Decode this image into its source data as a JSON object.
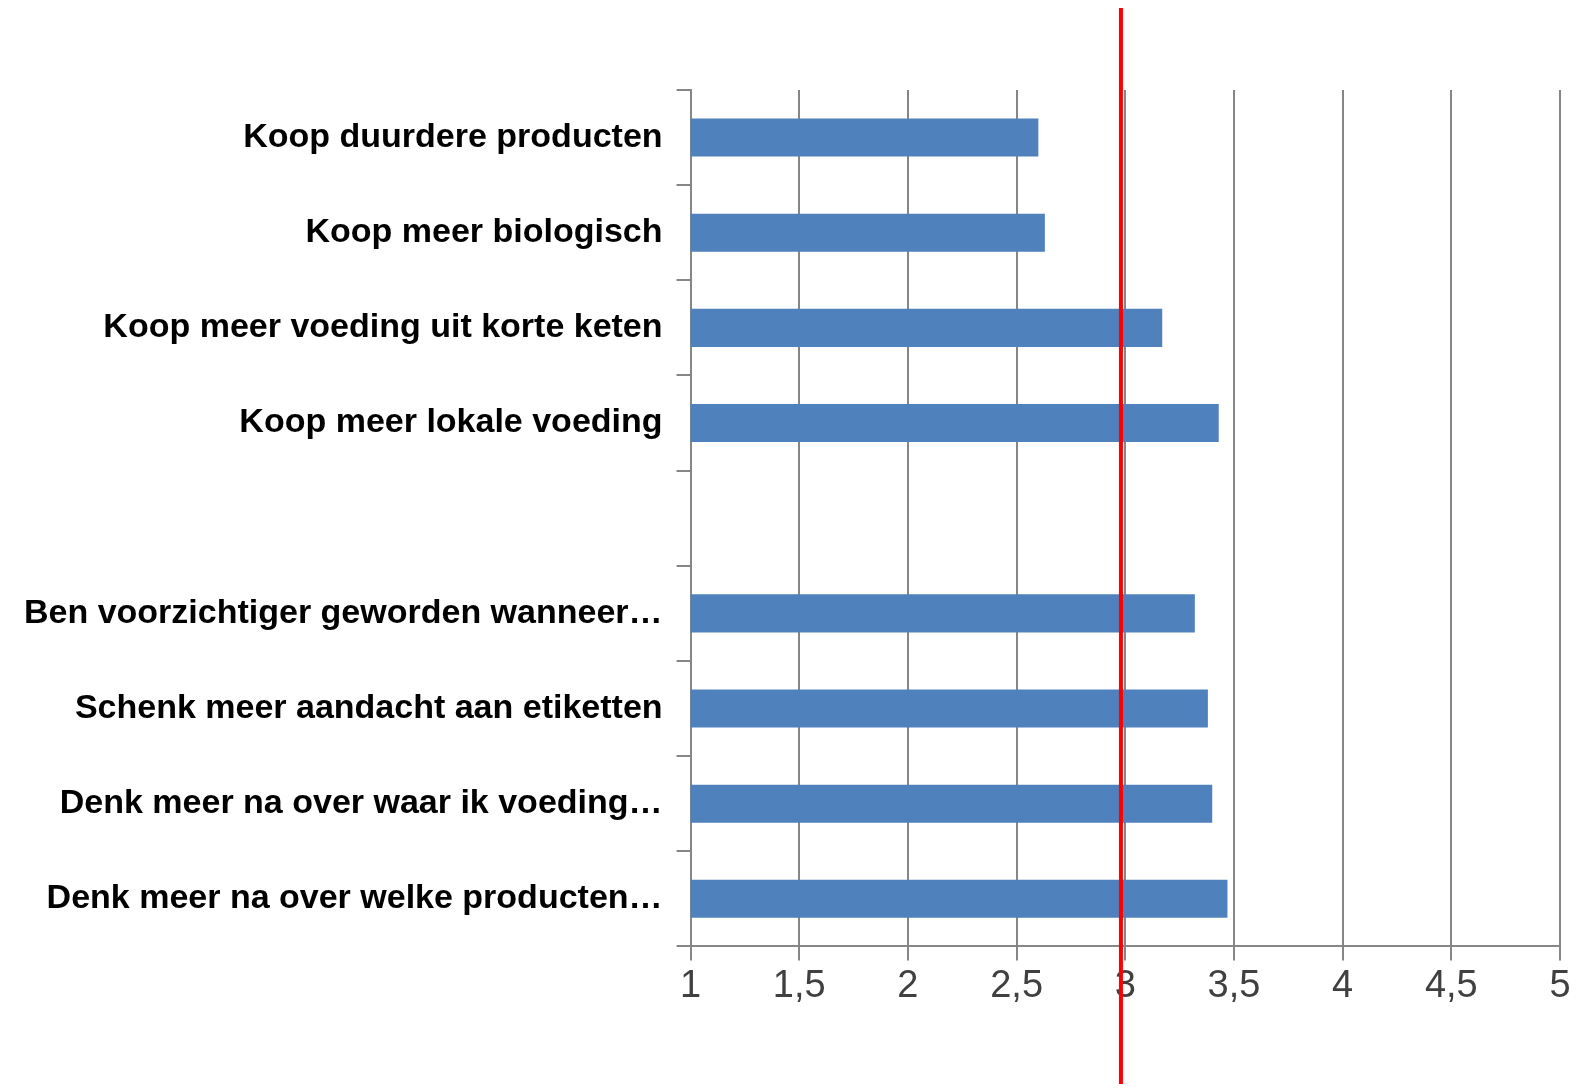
{
  "chart_data": {
    "type": "bar",
    "orientation": "horizontal",
    "categories": [
      "Koop duurdere producten",
      "Koop meer biologisch",
      "Koop meer voeding uit korte keten",
      "Koop meer lokale voeding",
      null,
      "Ben voorzichtiger geworden wanneer…",
      "Schenk meer aandacht aan etiketten",
      "Denk meer na over waar ik voeding…",
      "Denk meer na over welke producten…"
    ],
    "values": [
      2.6,
      2.63,
      3.17,
      3.43,
      null,
      3.32,
      3.38,
      3.4,
      3.47
    ],
    "color": "#4f81bd",
    "xlim": [
      1,
      5
    ],
    "xticks": [
      {
        "value": 1,
        "label": "1"
      },
      {
        "value": 1.5,
        "label": "1,5"
      },
      {
        "value": 2,
        "label": "2"
      },
      {
        "value": 2.5,
        "label": "2,5"
      },
      {
        "value": 3,
        "label": "3"
      },
      {
        "value": 3.5,
        "label": "3,5"
      },
      {
        "value": 4,
        "label": "4"
      },
      {
        "value": 4.5,
        "label": "4,5"
      },
      {
        "value": 5,
        "label": "5"
      }
    ],
    "grid": "x",
    "ref_lines": [
      {
        "axis": "x",
        "value": 2.98,
        "color": "#ff0000"
      }
    ]
  }
}
